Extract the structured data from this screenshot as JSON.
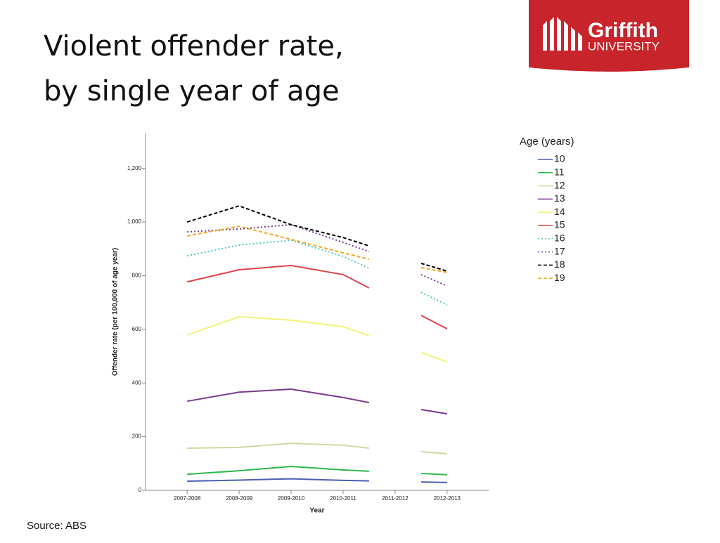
{
  "header": {
    "title": [
      "Violent offender rate,",
      "by single year of  age"
    ],
    "logo": {
      "name": "Griffith",
      "sub": "UNIVERSITY"
    }
  },
  "footer": {
    "source": "Source: ABS"
  },
  "chart_data": {
    "type": "line",
    "x_label": "Year",
    "y_label": "Offender rate (per 100,000 of age year)",
    "legend_title": "Age (years)",
    "x": [
      0,
      1,
      2,
      3,
      3.5,
      4,
      4.5,
      5
    ],
    "xlim": [
      -0.8,
      5.8
    ],
    "xticks": [
      {
        "value": 0,
        "label": "2007-2008"
      },
      {
        "value": 1,
        "label": "2008-2009"
      },
      {
        "value": 2,
        "label": "2009-2010"
      },
      {
        "value": 3,
        "label": "2010-2011"
      },
      {
        "value": 4,
        "label": "2011-2012"
      },
      {
        "value": 5,
        "label": "2012-2013"
      }
    ],
    "ylim": [
      0,
      1330
    ],
    "yticks": [
      0,
      200,
      400,
      600,
      800,
      {
        "value": 1000,
        "label": "1,000"
      },
      {
        "value": 1200,
        "label": "1,200"
      }
    ],
    "series": [
      {
        "name": "10",
        "color": "#4b5fb5",
        "dash": "solid",
        "values": [
          34,
          38,
          43,
          37,
          35,
          null,
          31,
          29
        ]
      },
      {
        "name": "11",
        "color": "#2db84b",
        "dash": "solid",
        "values": [
          60,
          73,
          89,
          76,
          71,
          null,
          63,
          58
        ]
      },
      {
        "name": "12",
        "color": "#d3d6a3",
        "dash": "solid",
        "values": [
          157,
          160,
          175,
          168,
          157,
          null,
          144,
          136
        ]
      },
      {
        "name": "13",
        "color": "#7a3b8f",
        "dash": "solid",
        "values": [
          332,
          366,
          377,
          346,
          327,
          null,
          301,
          285
        ]
      },
      {
        "name": "14",
        "color": "#f3f37a",
        "dash": "solid",
        "values": [
          579,
          647,
          634,
          610,
          576,
          null,
          513,
          479
        ]
      },
      {
        "name": "15",
        "color": "#e2434b",
        "dash": "solid",
        "values": [
          777,
          822,
          838,
          804,
          754,
          null,
          652,
          602
        ]
      },
      {
        "name": "16",
        "color": "#4fc8c0",
        "dash": "dotted",
        "values": [
          874,
          914,
          932,
          872,
          827,
          null,
          738,
          691
        ]
      },
      {
        "name": "17",
        "color": "#7a3b8f",
        "dash": "dotted",
        "values": [
          963,
          974,
          990,
          924,
          890,
          null,
          804,
          762
        ]
      },
      {
        "name": "18",
        "color": "#000000",
        "dash": "dashed",
        "values": [
          1000,
          1060,
          990,
          942,
          911,
          null,
          846,
          817
        ]
      },
      {
        "name": "19",
        "color": "#f5a623",
        "dash": "dashed",
        "values": [
          948,
          984,
          935,
          885,
          861,
          null,
          830,
          812
        ]
      }
    ]
  }
}
